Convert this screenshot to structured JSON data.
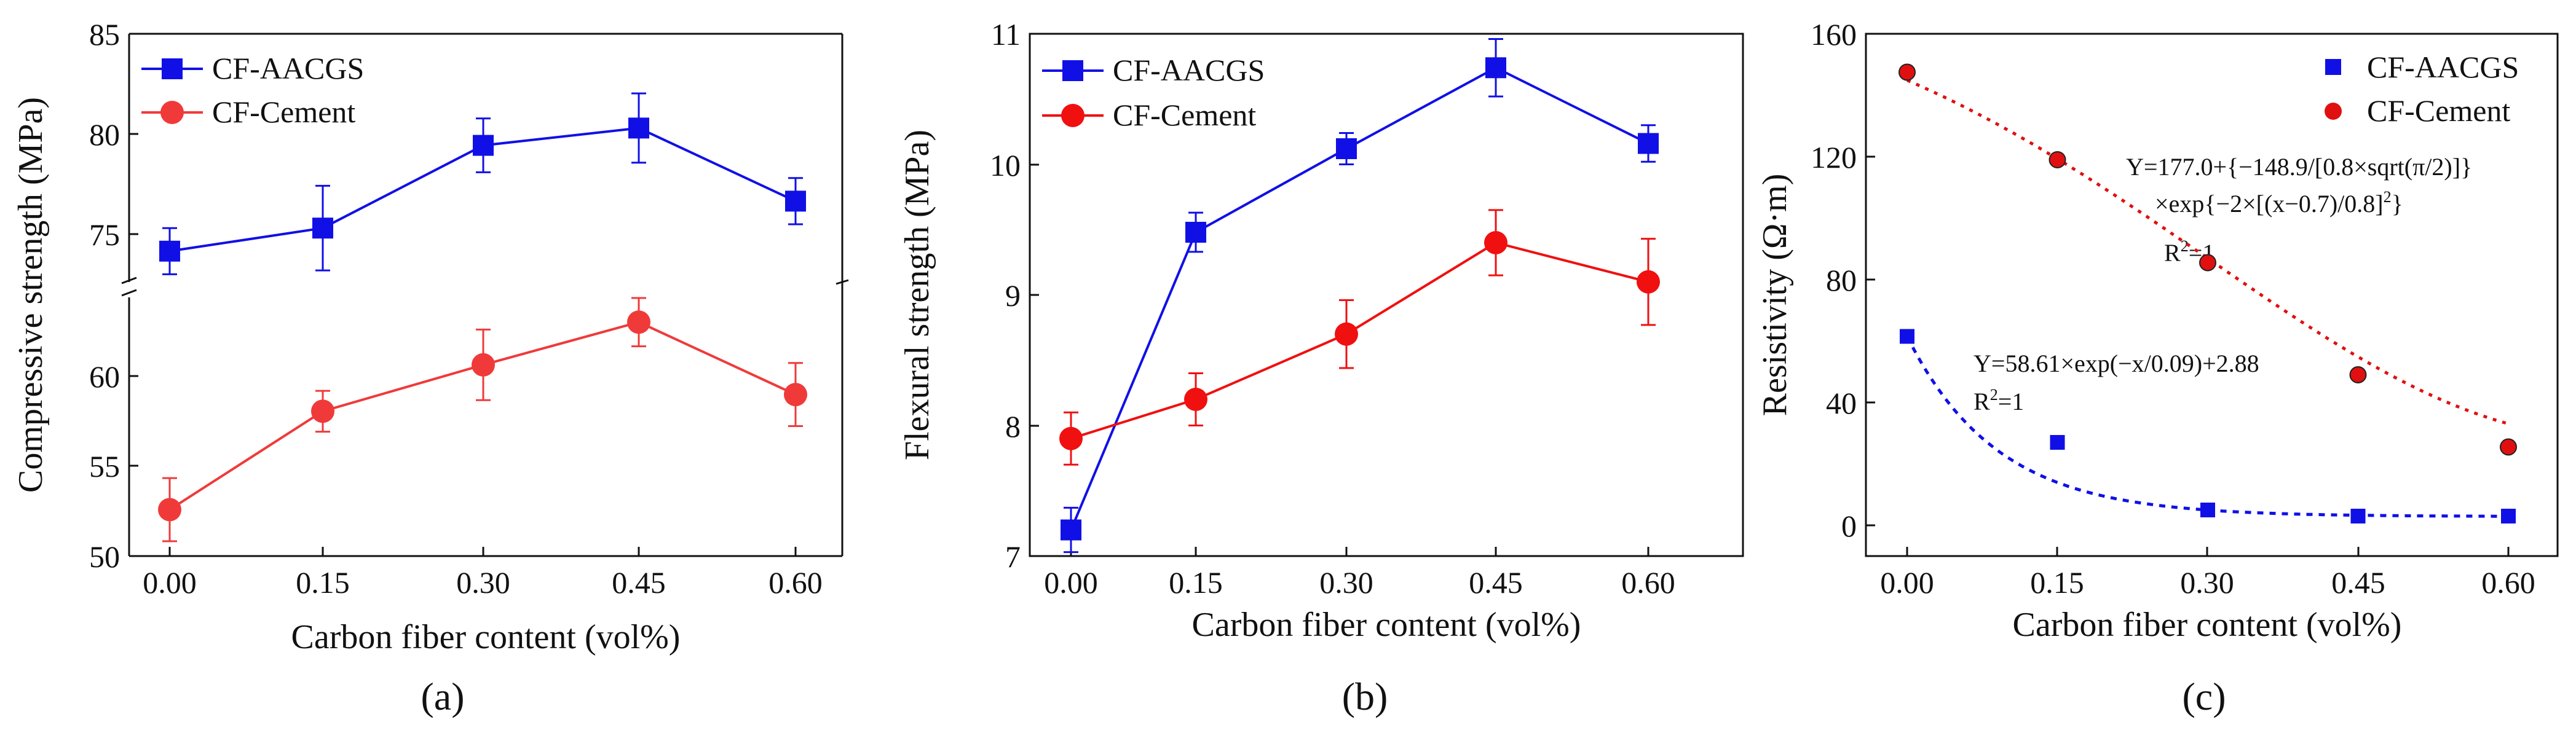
{
  "chart_data": [
    {
      "type": "line",
      "panel_label": "(a)",
      "xlabel": "Carbon fiber content (vol%)",
      "ylabel": "Compressive strength (MPa)",
      "x": [
        0.0,
        0.15,
        0.3,
        0.45,
        0.6
      ],
      "x_tick_labels": [
        "0.00",
        "0.15",
        "0.30",
        "0.45",
        "0.60"
      ],
      "y_axis_break": true,
      "ylim_lower": [
        50,
        64
      ],
      "ylim_upper": [
        72,
        85
      ],
      "y_tick_labels_lower": [
        "50",
        "55",
        "60"
      ],
      "y_tick_labels_upper": [
        "75",
        "80",
        "85"
      ],
      "legend_position": "top-left",
      "grid": false,
      "series": [
        {
          "name": "CF-AACGS",
          "color": "#1010e6",
          "marker": "square",
          "values": [
            73.7,
            74.9,
            79.2,
            80.1,
            76.3
          ],
          "errors": [
            1.2,
            2.2,
            1.4,
            1.8,
            1.2
          ]
        },
        {
          "name": "CF-Cement",
          "color": "#f03a3a",
          "marker": "circle",
          "values": [
            52.5,
            57.8,
            60.3,
            62.6,
            58.7
          ],
          "errors": [
            1.7,
            1.1,
            1.9,
            1.3,
            1.7
          ]
        }
      ]
    },
    {
      "type": "line",
      "panel_label": "(b)",
      "xlabel": "Carbon fiber content (vol%)",
      "ylabel": "Flexural strength (MPa)",
      "x": [
        0.0,
        0.15,
        0.3,
        0.45,
        0.6
      ],
      "x_tick_labels": [
        "0.00",
        "0.15",
        "0.30",
        "0.45",
        "0.60"
      ],
      "ylim": [
        7,
        11
      ],
      "y_tick_labels": [
        "7",
        "8",
        "9",
        "10",
        "11"
      ],
      "legend_position": "top-left",
      "grid": false,
      "series": [
        {
          "name": "CF-AACGS",
          "color": "#1010e6",
          "marker": "square",
          "values": [
            7.2,
            9.48,
            10.12,
            10.74,
            10.16
          ],
          "errors": [
            0.17,
            0.15,
            0.12,
            0.22,
            0.14
          ]
        },
        {
          "name": "CF-Cement",
          "color": "#f01010",
          "marker": "circle",
          "values": [
            7.9,
            8.2,
            8.7,
            9.4,
            9.1
          ],
          "errors": [
            0.2,
            0.2,
            0.26,
            0.25,
            0.33
          ]
        }
      ]
    },
    {
      "type": "scatter",
      "panel_label": "(c)",
      "xlabel": "Carbon fiber content (vol%)",
      "ylabel": "Resistivity (Ω·m)",
      "x": [
        0.0,
        0.15,
        0.3,
        0.45,
        0.6
      ],
      "x_tick_labels": [
        "0.00",
        "0.15",
        "0.30",
        "0.45",
        "0.60"
      ],
      "ylim": [
        -10,
        160
      ],
      "y_tick_labels": [
        "0",
        "40",
        "80",
        "120",
        "160"
      ],
      "legend_position": "top-right",
      "grid": false,
      "series": [
        {
          "name": "CF-AACGS",
          "color": "#1010e6",
          "marker": "square",
          "values": [
            61.5,
            27.0,
            5.0,
            3.0,
            3.0
          ],
          "fit_label": "Y=58.61×exp(−x/0.09)+2.88",
          "fit_r2_label": "R2=1"
        },
        {
          "name": "CF-Cement",
          "color": "#e01010",
          "marker": "circle",
          "values": [
            147.5,
            119.0,
            85.5,
            49.0,
            25.5
          ],
          "fit_label_line1": "Y=177.0+{−148.9/[0.8×sqrt(π/2)]}",
          "fit_label_line2": "×exp{−2×[(x−0.7)/0.8]2}",
          "fit_r2_label": "R2=1"
        }
      ]
    }
  ]
}
